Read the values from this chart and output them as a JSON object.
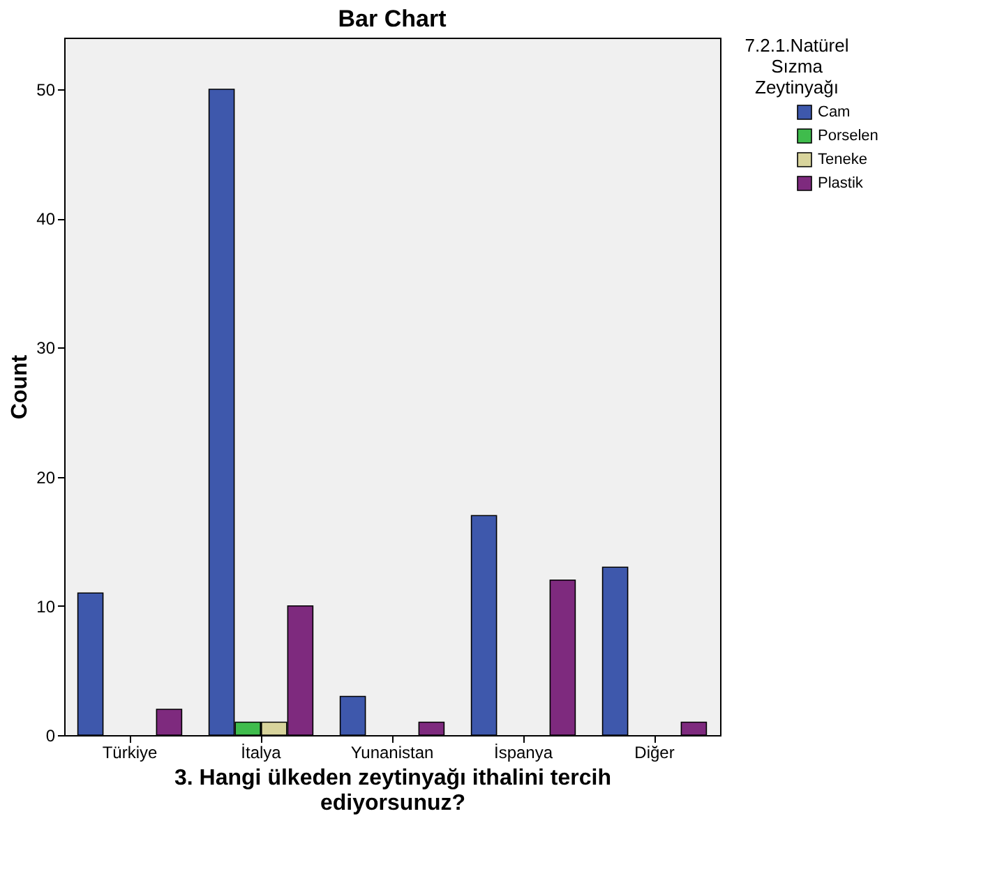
{
  "chart_data": {
    "type": "bar",
    "title": "Bar Chart",
    "xlabel": "3. Hangi ülkeden zeytinyağı ithalini tercih ediyorsunuz?",
    "ylabel": "Count",
    "legend_title": "7.2.1.Natürel Sızma Zeytinyağı",
    "categories": [
      "Türkiye",
      "İtalya",
      "Yunanistan",
      "İspanya",
      "Diğer"
    ],
    "series": [
      {
        "name": "Cam",
        "color": "#3e58ac",
        "values": [
          11,
          50,
          3,
          17,
          13
        ]
      },
      {
        "name": "Porselen",
        "color": "#3fbc4c",
        "values": [
          null,
          1,
          null,
          null,
          null
        ]
      },
      {
        "name": "Teneke",
        "color": "#d8d49c",
        "values": [
          null,
          1,
          null,
          null,
          null
        ]
      },
      {
        "name": "Plastik",
        "color": "#7e2a7e",
        "values": [
          2,
          10,
          1,
          12,
          1
        ]
      }
    ],
    "ylim": [
      0,
      54
    ],
    "yticks": [
      0,
      10,
      20,
      30,
      40,
      50
    ],
    "grid": false,
    "legend": "top right"
  }
}
